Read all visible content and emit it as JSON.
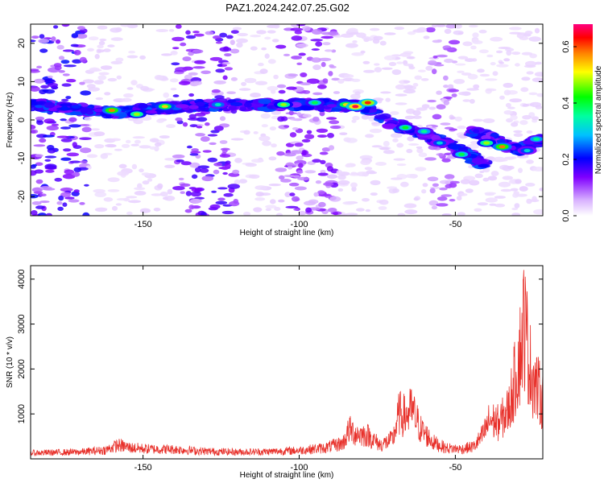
{
  "title": "PAZ1.2024.242.07.25.G02",
  "chart_data": [
    {
      "type": "heatmap",
      "xlabel": "Height of straight line (km)",
      "ylabel": "Frequency (Hz)",
      "xlim": [
        -186,
        -22
      ],
      "ylim": [
        -25,
        25
      ],
      "xticks": [
        -150,
        -100,
        -50
      ],
      "yticks": [
        -20,
        -10,
        0,
        10,
        20
      ],
      "colorbar": {
        "label": "Normalized spectral amplitude",
        "range": [
          0,
          0.68
        ],
        "ticks": [
          0.0,
          0.2,
          0.4,
          0.6
        ],
        "colormap": [
          "#ffffff",
          "#d9b3ff",
          "#8000ff",
          "#0000ff",
          "#00c0ff",
          "#00ffa0",
          "#00ff00",
          "#ffff00",
          "#ff8000",
          "#ff0000",
          "#ff0080"
        ]
      },
      "ridge": [
        {
          "x": -185,
          "f": 4
        },
        {
          "x": -160,
          "f": 2
        },
        {
          "x": -145,
          "f": 3
        },
        {
          "x": -128,
          "f": 4
        },
        {
          "x": -110,
          "f": 4
        },
        {
          "x": -95,
          "f": 4
        },
        {
          "x": -80,
          "f": 3.5
        },
        {
          "x": -70,
          "f": -1
        },
        {
          "x": -60,
          "f": -4
        },
        {
          "x": -50,
          "f": -7
        },
        {
          "x": -40,
          "f": -12
        }
      ],
      "ridge2": [
        {
          "x": -45,
          "f": -3
        },
        {
          "x": -38,
          "f": -5
        },
        {
          "x": -30,
          "f": -8
        },
        {
          "x": -22,
          "f": -5
        }
      ],
      "hotspots": [
        {
          "x": -160,
          "f": 2.5,
          "v": 0.55
        },
        {
          "x": -152,
          "f": 1.5,
          "v": 0.45
        },
        {
          "x": -143,
          "f": 3.5,
          "v": 0.5
        },
        {
          "x": -126,
          "f": 4,
          "v": 0.32
        },
        {
          "x": -105,
          "f": 4,
          "v": 0.45
        },
        {
          "x": -95,
          "f": 4.5,
          "v": 0.38
        },
        {
          "x": -85,
          "f": 4,
          "v": 0.5
        },
        {
          "x": -82,
          "f": 3.5,
          "v": 0.65
        },
        {
          "x": -78,
          "f": 4.5,
          "v": 0.6
        },
        {
          "x": -66,
          "f": -2,
          "v": 0.4
        },
        {
          "x": -60,
          "f": -3,
          "v": 0.35
        },
        {
          "x": -55,
          "f": -6,
          "v": 0.3
        },
        {
          "x": -48,
          "f": -9,
          "v": 0.38
        },
        {
          "x": -40,
          "f": -6,
          "v": 0.45
        },
        {
          "x": -35,
          "f": -7,
          "v": 0.55
        },
        {
          "x": -27,
          "f": -8,
          "v": 0.3
        },
        {
          "x": -24,
          "f": -5,
          "v": 0.35
        }
      ]
    },
    {
      "type": "line",
      "xlabel": "Height of straight line (km)",
      "ylabel": "SNR (10 * v/v)",
      "xlim": [
        -186,
        -22
      ],
      "ylim": [
        0,
        4300
      ],
      "xticks": [
        -150,
        -100,
        -50
      ],
      "yticks": [
        1000,
        2000,
        3000,
        4000
      ],
      "color": "#e8302a",
      "envelope": [
        {
          "x": -186,
          "y": 180
        },
        {
          "x": -170,
          "y": 210
        },
        {
          "x": -162,
          "y": 270
        },
        {
          "x": -158,
          "y": 420
        },
        {
          "x": -154,
          "y": 340
        },
        {
          "x": -148,
          "y": 300
        },
        {
          "x": -140,
          "y": 290
        },
        {
          "x": -130,
          "y": 230
        },
        {
          "x": -120,
          "y": 210
        },
        {
          "x": -110,
          "y": 220
        },
        {
          "x": -100,
          "y": 260
        },
        {
          "x": -92,
          "y": 330
        },
        {
          "x": -86,
          "y": 480
        },
        {
          "x": -84,
          "y": 900
        },
        {
          "x": -82,
          "y": 780
        },
        {
          "x": -78,
          "y": 720
        },
        {
          "x": -74,
          "y": 420
        },
        {
          "x": -70,
          "y": 600
        },
        {
          "x": -68,
          "y": 1400
        },
        {
          "x": -66,
          "y": 1300
        },
        {
          "x": -64,
          "y": 1500
        },
        {
          "x": -61,
          "y": 900
        },
        {
          "x": -57,
          "y": 500
        },
        {
          "x": -53,
          "y": 330
        },
        {
          "x": -48,
          "y": 300
        },
        {
          "x": -44,
          "y": 380
        },
        {
          "x": -41,
          "y": 750
        },
        {
          "x": -39,
          "y": 1200
        },
        {
          "x": -36,
          "y": 1100
        },
        {
          "x": -33,
          "y": 1500
        },
        {
          "x": -31,
          "y": 2400
        },
        {
          "x": -29,
          "y": 3400
        },
        {
          "x": -28,
          "y": 4250
        },
        {
          "x": -26,
          "y": 2800
        },
        {
          "x": -24,
          "y": 2200
        },
        {
          "x": -22,
          "y": 1800
        }
      ]
    }
  ]
}
